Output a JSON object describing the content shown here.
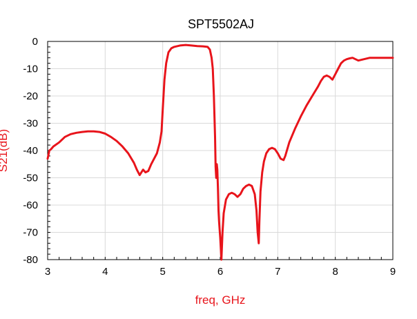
{
  "chart_data": {
    "type": "line",
    "title": "SPT5502AJ",
    "xlabel": "freq, GHz",
    "ylabel": "S21(dB)",
    "xlim": [
      3,
      9
    ],
    "ylim": [
      -80,
      0
    ],
    "x_ticks": [
      "3",
      "4",
      "5",
      "6",
      "7",
      "8",
      "9"
    ],
    "y_ticks": [
      "0",
      "-10",
      "-20",
      "-30",
      "-40",
      "-50",
      "-60",
      "-70",
      "-80"
    ],
    "grid": true,
    "colors": {
      "series": "#e8141b",
      "label": "#e8141b",
      "grid": "#d9d9d9",
      "frame": "#000000"
    },
    "series": [
      {
        "name": "S21(dB)",
        "x": [
          3.0,
          3.03,
          3.06,
          3.1,
          3.2,
          3.3,
          3.4,
          3.5,
          3.6,
          3.7,
          3.8,
          3.9,
          4.0,
          4.1,
          4.2,
          4.3,
          4.4,
          4.5,
          4.55,
          4.6,
          4.63,
          4.66,
          4.7,
          4.75,
          4.8,
          4.85,
          4.9,
          4.95,
          4.98,
          5.0,
          5.03,
          5.06,
          5.1,
          5.15,
          5.2,
          5.3,
          5.4,
          5.5,
          5.6,
          5.7,
          5.78,
          5.82,
          5.85,
          5.87,
          5.89,
          5.91,
          5.92,
          5.93,
          5.94,
          5.95,
          5.96,
          5.97,
          5.98,
          6.0,
          6.02,
          6.04,
          6.06,
          6.1,
          6.15,
          6.2,
          6.25,
          6.3,
          6.35,
          6.4,
          6.45,
          6.5,
          6.55,
          6.6,
          6.63,
          6.65,
          6.67,
          6.68,
          6.7,
          6.73,
          6.76,
          6.8,
          6.85,
          6.9,
          6.95,
          7.0,
          7.05,
          7.1,
          7.13,
          7.2,
          7.3,
          7.4,
          7.5,
          7.6,
          7.7,
          7.75,
          7.8,
          7.85,
          7.9,
          7.95,
          8.0,
          8.05,
          8.1,
          8.15,
          8.2,
          8.25,
          8.3,
          8.35,
          8.4,
          8.5,
          8.6,
          8.7,
          8.8,
          8.9,
          9.0
        ],
        "y": [
          -43,
          -40,
          -39.5,
          -38.5,
          -37,
          -35,
          -34,
          -33.5,
          -33.2,
          -33,
          -33,
          -33.2,
          -33.8,
          -35,
          -36.5,
          -38.5,
          -41,
          -44.5,
          -47,
          -49,
          -48,
          -47,
          -48,
          -47.5,
          -45,
          -43,
          -41,
          -37,
          -33,
          -25,
          -14,
          -8,
          -4,
          -2.5,
          -2,
          -1.5,
          -1.3,
          -1.5,
          -1.7,
          -1.8,
          -2,
          -3,
          -6,
          -10,
          -20,
          -35,
          -46,
          -50,
          -45,
          -47,
          -54,
          -62,
          -66,
          -72,
          -80,
          -70,
          -63,
          -58,
          -56,
          -55.5,
          -56,
          -57,
          -56,
          -54,
          -53,
          -52.5,
          -53,
          -56,
          -62,
          -70,
          -74,
          -66,
          -55,
          -48,
          -44,
          -41,
          -39.5,
          -39,
          -39.5,
          -41,
          -43,
          -43.5,
          -42,
          -37,
          -32,
          -27.5,
          -23.5,
          -20,
          -16.5,
          -14.5,
          -13,
          -12.5,
          -13,
          -14,
          -12,
          -10,
          -8,
          -7,
          -6.5,
          -6.2,
          -6,
          -6.5,
          -7,
          -6.5,
          -6,
          -6,
          -6,
          -6,
          -6
        ]
      }
    ]
  }
}
